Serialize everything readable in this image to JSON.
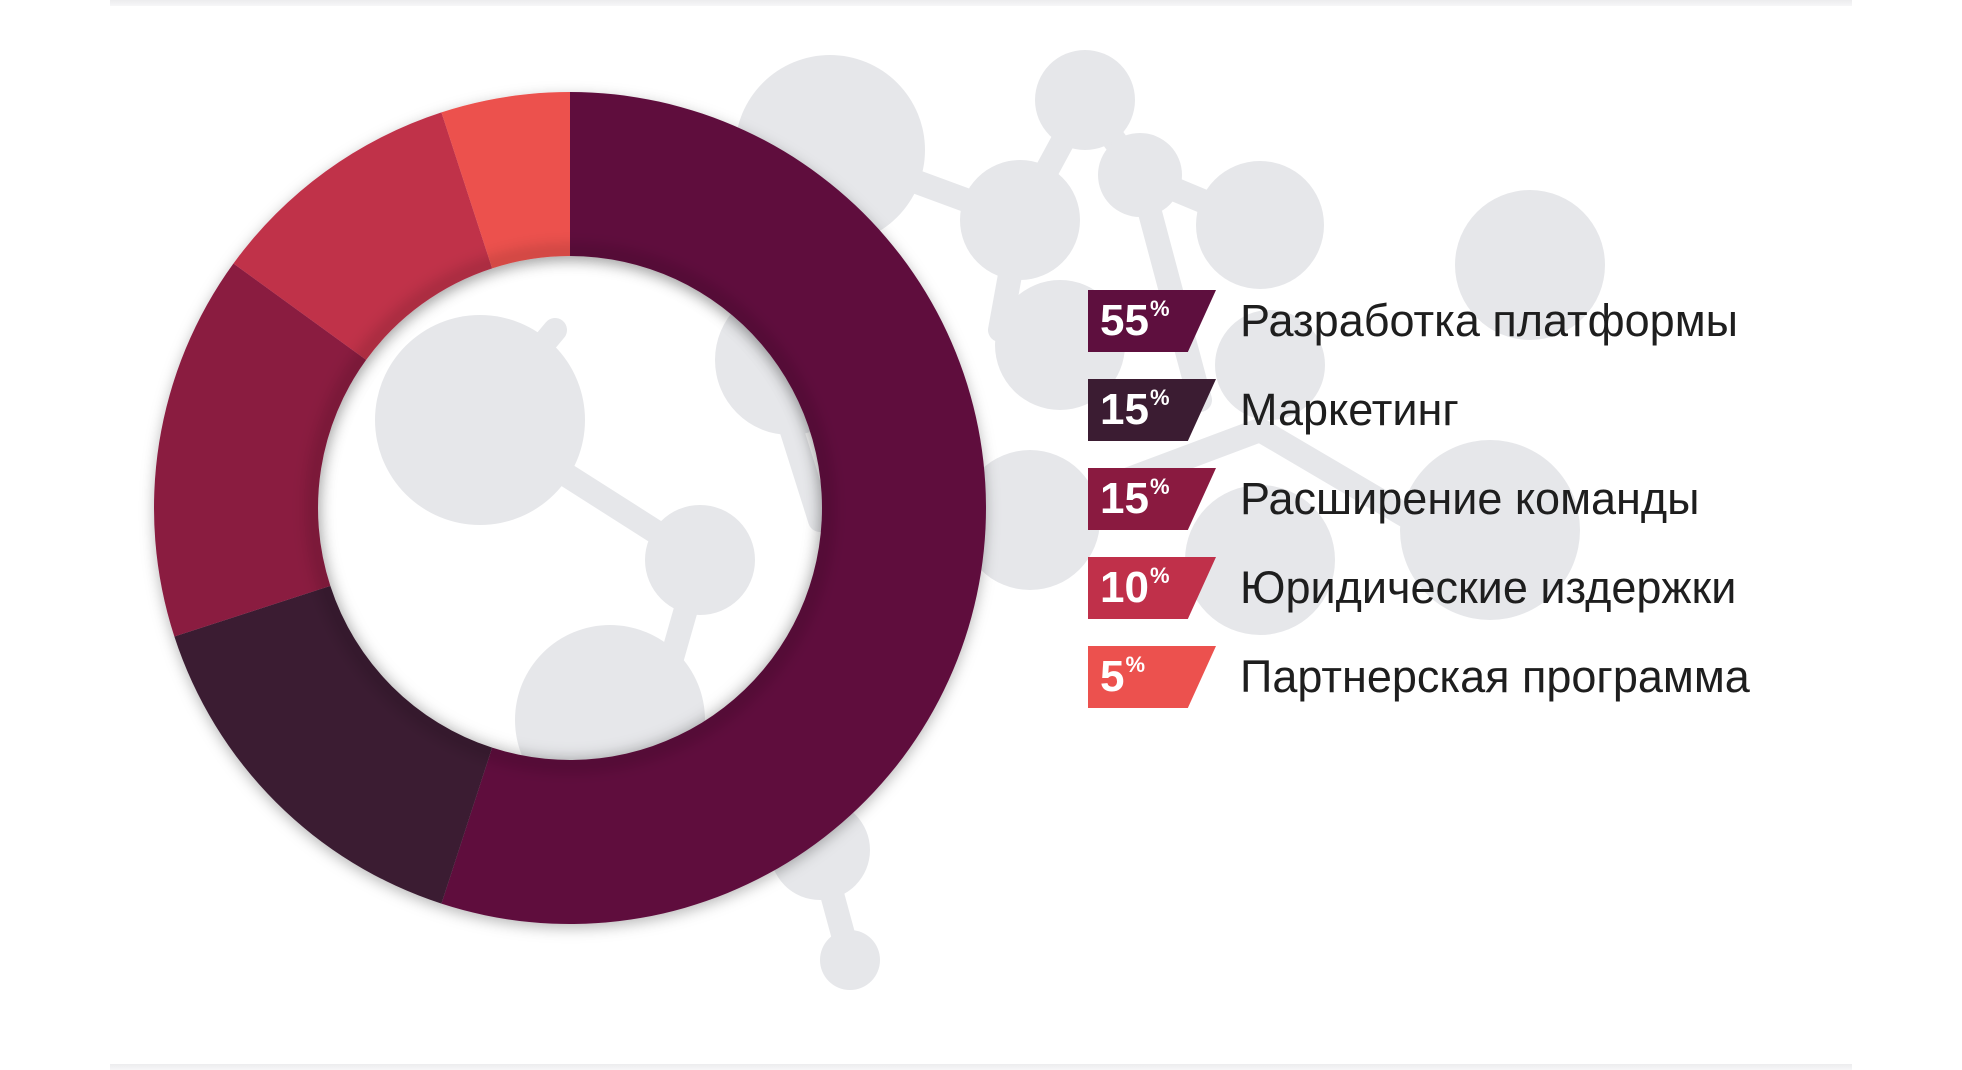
{
  "chart_data": {
    "type": "pie",
    "style": "donut",
    "unit": "%",
    "slices": [
      {
        "label": "Разработка платформы",
        "value": 55,
        "color": "#5e0f3e"
      },
      {
        "label": "Маркетинг",
        "value": 15,
        "color": "#3b1c32"
      },
      {
        "label": "Расширение команды",
        "value": 15,
        "color": "#8a1a40"
      },
      {
        "label": "Юридические издержки",
        "value": 10,
        "color": "#c0304a"
      },
      {
        "label": "Партнерская программа",
        "value": 5,
        "color": "#ec514e"
      }
    ],
    "legend_position": "right"
  },
  "colors": {
    "background_network": "#e6e7ea",
    "text": "#1e1e1e"
  }
}
